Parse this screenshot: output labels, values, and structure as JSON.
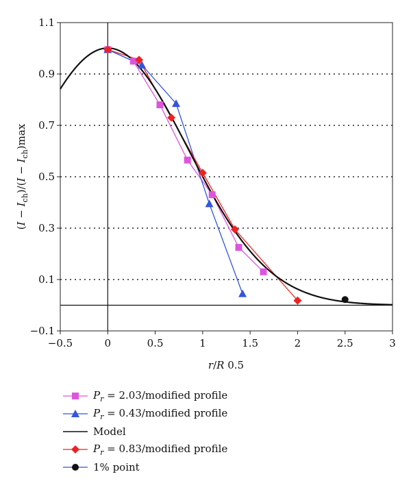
{
  "chart_data": {
    "type": "line",
    "title": "",
    "xlabel": "r/R 0.5",
    "ylabel": "(I − I_ch)/(I − I_ch)max",
    "ylabel_parts": [
      "(",
      "I",
      " − ",
      "I",
      "ch",
      ")/(",
      "I",
      " − ",
      "I",
      "ch",
      ")max"
    ],
    "xlim": [
      -0.5,
      3
    ],
    "ylim": [
      -0.1,
      1.1
    ],
    "x_ticks": [
      -0.5,
      0,
      0.5,
      1,
      1.5,
      2,
      2.5,
      3
    ],
    "x_tick_labels": [
      "−0.5",
      "0",
      "0.5",
      "1",
      "1.5",
      "2",
      "2.5",
      "3"
    ],
    "y_ticks": [
      -0.1,
      0.1,
      0.3,
      0.5,
      0.7,
      0.9,
      1.1
    ],
    "y_tick_labels": [
      "−0.1",
      "0.1",
      "0.3",
      "0.5",
      "0.7",
      "0.9",
      "1.1"
    ],
    "grid": "dotted horizontal",
    "legend_position": "bottom",
    "series": [
      {
        "name": "P_r = 2.03/modified profile",
        "label_parts": [
          "P",
          "r",
          " = 2.03/modified profile"
        ],
        "color": "#dd55dd",
        "marker": "square",
        "x": [
          0.0,
          0.27,
          0.55,
          0.84,
          1.1,
          1.38,
          1.64
        ],
        "y": [
          0.995,
          0.95,
          0.78,
          0.565,
          0.43,
          0.225,
          0.13
        ]
      },
      {
        "name": "P_r = 0.43/modified profile",
        "label_parts": [
          "P",
          "r",
          " = 0.43/modified profile"
        ],
        "color": "#3355dd",
        "marker": "triangle",
        "x": [
          0.0,
          0.36,
          0.72,
          1.07,
          1.42
        ],
        "y": [
          0.995,
          0.935,
          0.785,
          0.395,
          0.045
        ]
      },
      {
        "name": "Model",
        "label_parts": [
          "Model"
        ],
        "color": "#111111",
        "marker": "none",
        "function": "1.0009*exp(-0.693*x^2)",
        "x_range": [
          -0.5,
          3
        ]
      },
      {
        "name": "P_r = 0.83/modified profile",
        "label_parts": [
          "P",
          "r",
          " = 0.83/modified profile"
        ],
        "color": "#ee2222",
        "marker": "diamond",
        "x": [
          0.0,
          0.33,
          0.67,
          1.0,
          1.34,
          2.0
        ],
        "y": [
          0.995,
          0.955,
          0.73,
          0.515,
          0.295,
          0.018
        ]
      },
      {
        "name": "1% point",
        "label_parts": [
          "1% point"
        ],
        "color": "#111111",
        "line_color": "#3355dd",
        "marker": "circle",
        "x": [
          2.5
        ],
        "y": [
          0.022
        ]
      }
    ]
  }
}
